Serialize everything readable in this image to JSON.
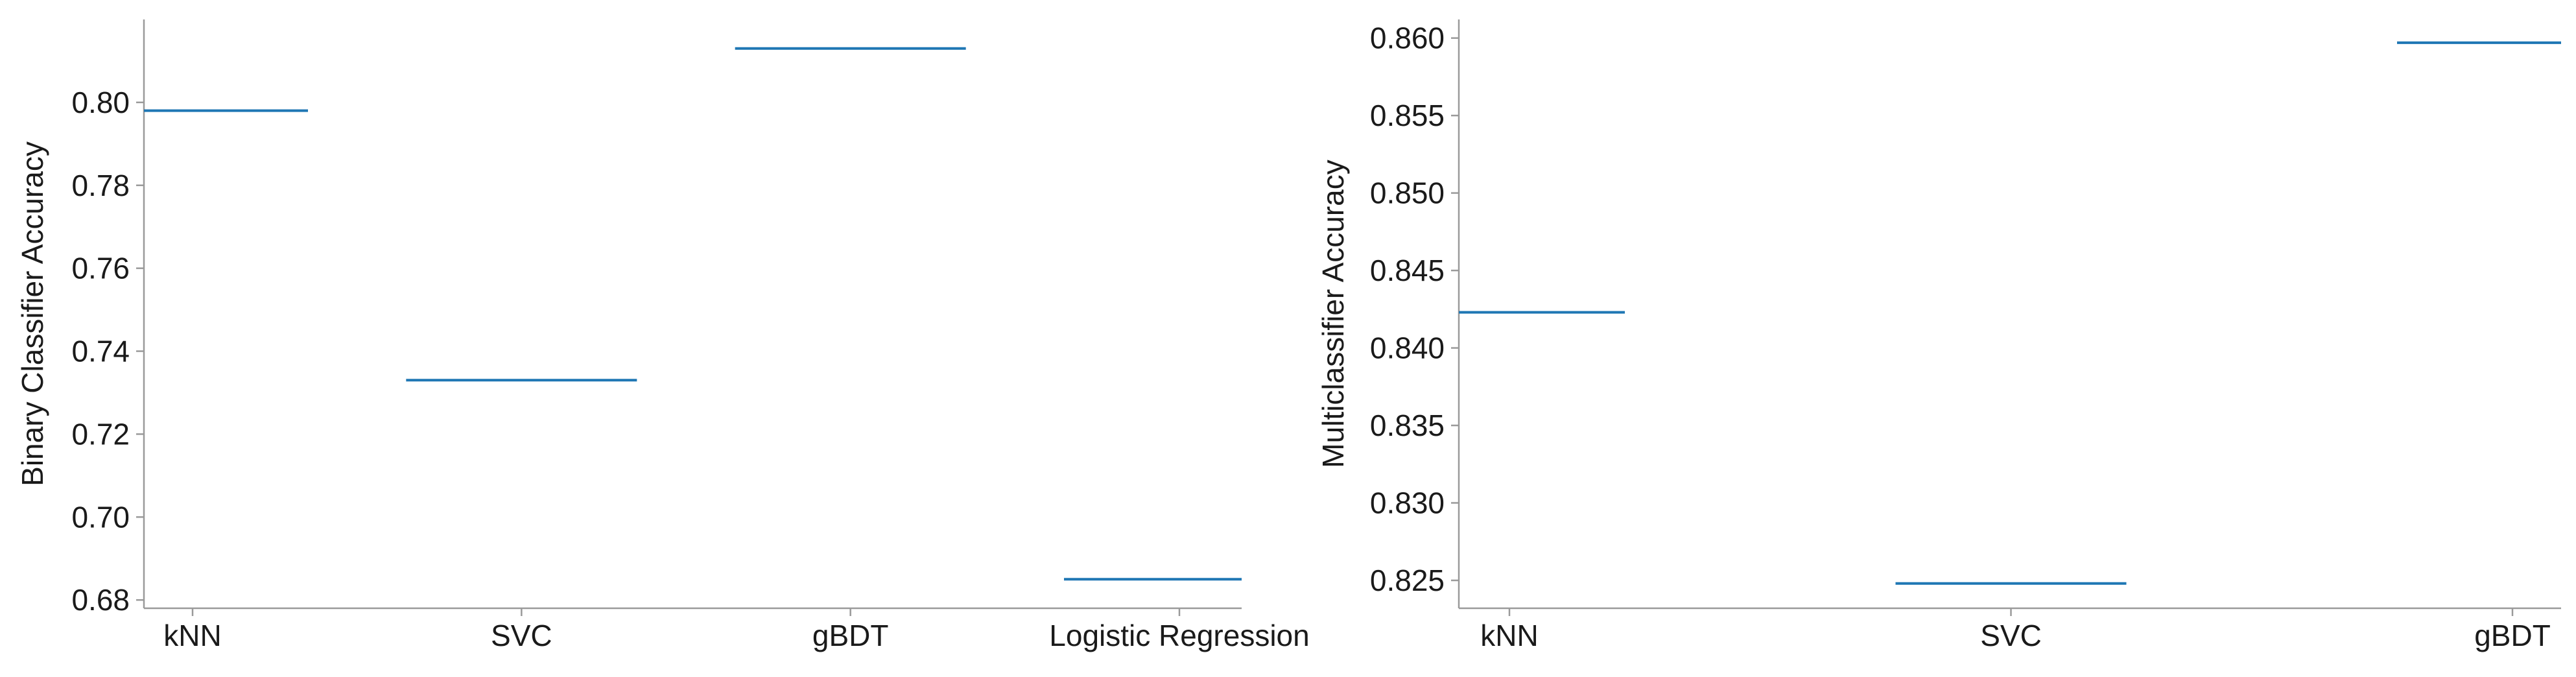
{
  "chart_data": [
    {
      "type": "line",
      "title": "",
      "xlabel": "",
      "ylabel": "Binary Classifier Accuracy",
      "categories": [
        "kNN",
        "SVC",
        "gBDT",
        "Logistic Regression"
      ],
      "series": [
        {
          "values": [
            0.798,
            0.733,
            0.813,
            0.685
          ]
        }
      ],
      "ylim": [
        0.678,
        0.82
      ],
      "yticks": [
        0.68,
        0.7,
        0.72,
        0.74,
        0.76,
        0.78,
        0.8
      ],
      "ytick_labels": [
        "0.68",
        "0.70",
        "0.72",
        "0.74",
        "0.76",
        "0.78",
        "0.80"
      ],
      "grid": false,
      "color": "#1f77b4"
    },
    {
      "type": "line",
      "title": "",
      "xlabel": "",
      "ylabel": "Multiclassifier Accuracy",
      "categories": [
        "kNN",
        "SVC",
        "gBDT"
      ],
      "series": [
        {
          "values": [
            0.8423,
            0.8248,
            0.8597
          ]
        }
      ],
      "ylim": [
        0.8232,
        0.8612
      ],
      "yticks": [
        0.825,
        0.83,
        0.835,
        0.84,
        0.845,
        0.85,
        0.855,
        0.86
      ],
      "ytick_labels": [
        "0.825",
        "0.830",
        "0.835",
        "0.840",
        "0.845",
        "0.850",
        "0.855",
        "0.860"
      ],
      "grid": false,
      "color": "#1f77b4"
    }
  ]
}
